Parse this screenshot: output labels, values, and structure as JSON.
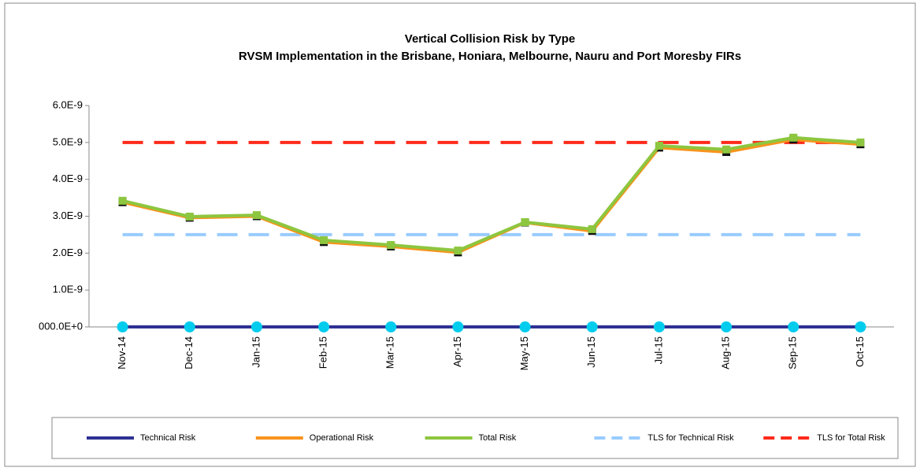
{
  "chart_data": {
    "type": "line",
    "title": "Vertical Collision Risk by Type",
    "subtitle": "RVSM Implementation  in the Brisbane, Honiara, Melbourne, Nauru and Port Moresby FIRs",
    "categories": [
      "Nov-14",
      "Dec-14",
      "Jan-15",
      "Feb-15",
      "Mar-15",
      "Apr-15",
      "May-15",
      "Jun-15",
      "Jul-15",
      "Aug-15",
      "Sep-15",
      "Oct-15"
    ],
    "series": [
      {
        "name": "Technical Risk",
        "color": "#2e3192",
        "marker": "circle",
        "marker_color": "#00ccee",
        "values": [
          0,
          0,
          0,
          0,
          0,
          0,
          0,
          0,
          0,
          0,
          0,
          0
        ]
      },
      {
        "name": "Operational Risk",
        "color": "#f7941d",
        "marker": "square",
        "marker_color": "#111111",
        "values": [
          3.38e-09,
          2.96e-09,
          3e-09,
          2.3e-09,
          2.18e-09,
          2.02e-09,
          2.83e-09,
          2.6e-09,
          4.86e-09,
          4.74e-09,
          5.08e-09,
          4.95e-09
        ]
      },
      {
        "name": "Total Risk",
        "color": "#8dc63f",
        "marker": "square",
        "marker_color": "#8dc63f",
        "values": [
          3.42e-09,
          2.99e-09,
          3.03e-09,
          2.35e-09,
          2.22e-09,
          2.07e-09,
          2.84e-09,
          2.65e-09,
          4.91e-09,
          4.81e-09,
          5.13e-09,
          5e-09
        ]
      },
      {
        "name": "TLS for Technical Risk",
        "color": "#99ccff",
        "dashed": true,
        "values": [
          2.5e-09,
          2.5e-09,
          2.5e-09,
          2.5e-09,
          2.5e-09,
          2.5e-09,
          2.5e-09,
          2.5e-09,
          2.5e-09,
          2.5e-09,
          2.5e-09,
          2.5e-09
        ]
      },
      {
        "name": "TLS for Total Risk",
        "color": "#ff2a1a",
        "dashed": true,
        "values": [
          5e-09,
          5e-09,
          5e-09,
          5e-09,
          5e-09,
          5e-09,
          5e-09,
          5e-09,
          5e-09,
          5e-09,
          5e-09,
          5e-09
        ]
      }
    ],
    "ylim": [
      0,
      6e-09
    ],
    "yticks": [
      {
        "value": 0,
        "label": "000.0E+0"
      },
      {
        "value": 1e-09,
        "label": "1.0E-9"
      },
      {
        "value": 2e-09,
        "label": "2.0E-9"
      },
      {
        "value": 3e-09,
        "label": "3.0E-9"
      },
      {
        "value": 4e-09,
        "label": "4.0E-9"
      },
      {
        "value": 5e-09,
        "label": "5.0E-9"
      },
      {
        "value": 6e-09,
        "label": "6.0E-9"
      }
    ],
    "legend": "bottom"
  }
}
